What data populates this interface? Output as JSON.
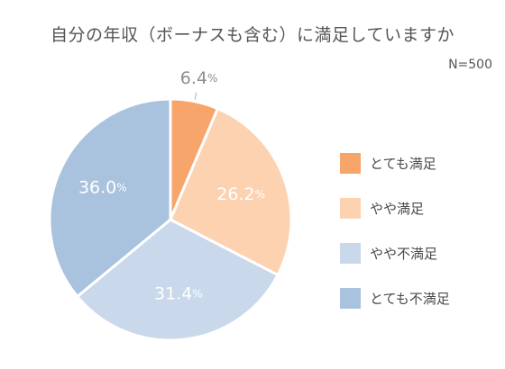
{
  "title": "自分の年収（ボーナスも含む）に満足していますか",
  "sample_size": "N=500",
  "chart_data": {
    "type": "pie",
    "title": "自分の年収（ボーナスも含む）に満足していますか",
    "start_angle_deg": 0,
    "direction": "clockwise",
    "slices": [
      {
        "label": "とても満足",
        "value": 6.4,
        "display": "6.4",
        "unit": "%",
        "color": "#f7a56a",
        "label_color": "#8f8f8f",
        "label_outside": true
      },
      {
        "label": "やや満足",
        "value": 26.2,
        "display": "26.2",
        "unit": "%",
        "color": "#fcd2b0",
        "label_color": "#ffffff",
        "label_outside": false
      },
      {
        "label": "やや不満足",
        "value": 31.4,
        "display": "31.4",
        "unit": "%",
        "color": "#c9d8ea",
        "label_color": "#ffffff",
        "label_outside": false
      },
      {
        "label": "とても不満足",
        "value": 36.0,
        "display": "36.0",
        "unit": "%",
        "color": "#a9c2de",
        "label_color": "#ffffff",
        "label_outside": false
      }
    ],
    "legend": {
      "position": "right",
      "items": [
        {
          "label": "とても満足",
          "color": "#f7a56a"
        },
        {
          "label": "やや満足",
          "color": "#fcd2b0"
        },
        {
          "label": "やや不満足",
          "color": "#c9d8ea"
        },
        {
          "label": "とても不満足",
          "color": "#a9c2de"
        }
      ]
    }
  }
}
